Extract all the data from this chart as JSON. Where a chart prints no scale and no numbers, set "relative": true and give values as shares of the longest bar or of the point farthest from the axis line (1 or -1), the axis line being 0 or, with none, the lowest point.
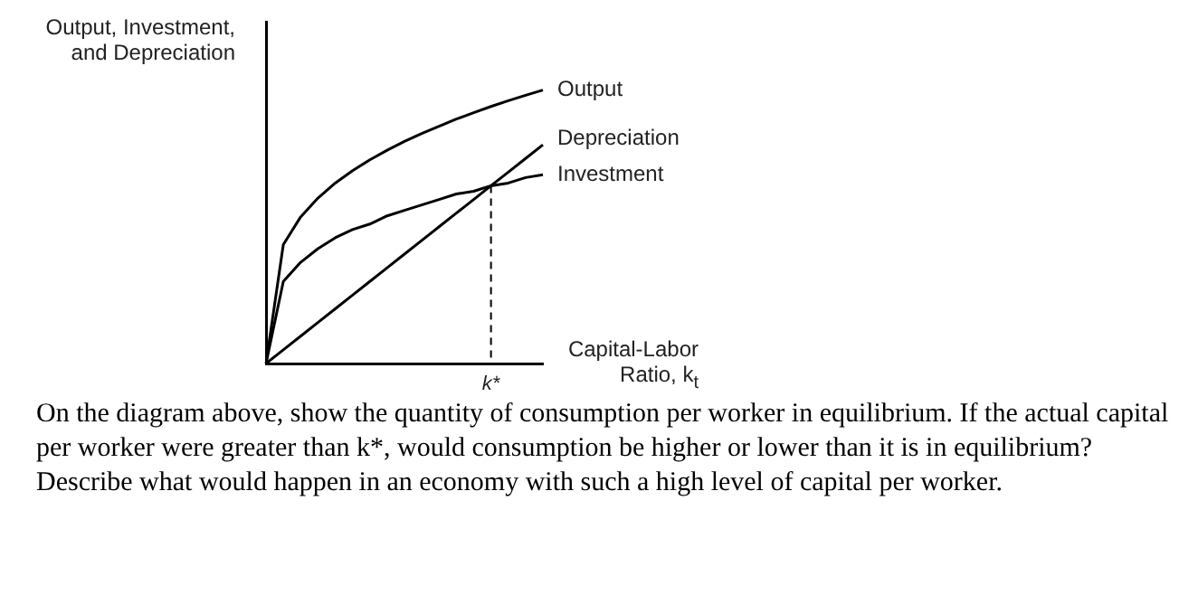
{
  "chart_data": {
    "type": "line",
    "relative": true,
    "tick_labels": false,
    "legend": false,
    "grid": false,
    "marker": "none",
    "line_style": "solid",
    "ylabel": "Output, Investment, and Depreciation",
    "xlabel": "Capital-Labor Ratio, k$_{t}$",
    "categories": [
      null,
      null,
      null,
      null,
      null,
      null,
      null,
      null,
      null,
      null,
      null,
      null,
      null,
      null,
      null,
      null,
      null
    ],
    "series": [
      {
        "name": "Output",
        "color": "#000000",
        "values": [
          0,
          0.435,
          0.536,
          0.605,
          0.66,
          0.705,
          0.745,
          0.78,
          0.812,
          0.841,
          0.868,
          0.894,
          0.917,
          0.94,
          0.961,
          0.981,
          1
        ]
      },
      {
        "name": "Depreciation",
        "color": "#000000",
        "values": [
          0,
          0.05,
          0.1,
          0.15,
          0.2,
          0.25,
          0.3,
          0.35,
          0.4,
          0.45,
          0.5,
          0.55,
          0.6,
          0.65,
          0.7,
          0.75,
          0.8
        ]
      },
      {
        "name": "Investment",
        "color": "#000000",
        "values": [
          0,
          0.3,
          0.37,
          0.42,
          0.46,
          0.49,
          0.51,
          0.54,
          0.56,
          0.58,
          0.6,
          0.62,
          0.63,
          0.65,
          0.66,
          0.68,
          0.69
        ]
      }
    ],
    "annotations": [
      {
        "text": "k*"
      },
      "On the diagram above, show the quantity of consumption per worker in equilibrium. If the actual capital per worker were greater than k*, would consumption be higher or lower than it is in equilibrium? Describe what would happen in an economy with such a high level of capital per worker."
    ]
  }
}
